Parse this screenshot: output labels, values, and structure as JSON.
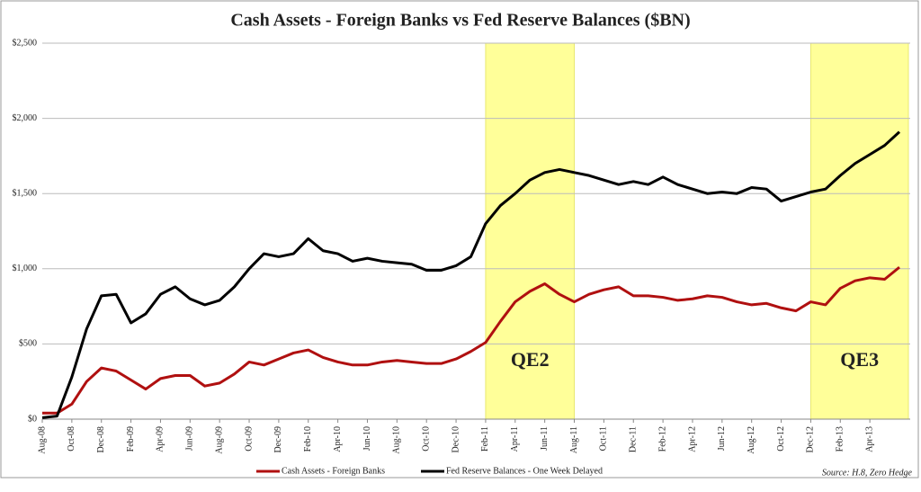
{
  "chart_data": {
    "type": "line",
    "title": "Cash Assets - Foreign Banks vs Fed Reserve Balances ($BN)",
    "source": "Source: H.8, Zero Hedge",
    "categories": [
      "Aug-08",
      null,
      "Oct-08",
      null,
      "Dec-08",
      null,
      "Feb-09",
      null,
      "Apr-09",
      null,
      "Jun-09",
      null,
      "Aug-09",
      null,
      "Oct-09",
      null,
      "Dec-09",
      null,
      "Feb-10",
      null,
      "Apr-10",
      null,
      "Jun-10",
      null,
      "Aug-10",
      null,
      "Oct-10",
      null,
      "Dec-10",
      null,
      "Feb-11",
      null,
      "Apr-11",
      null,
      "Jun-11",
      null,
      "Aug-11",
      null,
      "Oct-11",
      null,
      "Dec-11",
      null,
      "Feb-12",
      null,
      "Apr-12",
      null,
      "Jun-12",
      null,
      "Aug-12",
      null,
      "Oct-12",
      null,
      "Dec-12",
      null,
      "Feb-13",
      null,
      "Apr-13",
      null,
      null
    ],
    "series": [
      {
        "name": "Cash Assets - Foreign Banks",
        "color": "#b01010",
        "values": [
          40,
          40,
          100,
          250,
          340,
          320,
          260,
          200,
          270,
          290,
          290,
          220,
          240,
          300,
          380,
          360,
          400,
          440,
          460,
          410,
          380,
          360,
          360,
          380,
          390,
          380,
          370,
          370,
          400,
          450,
          510,
          650,
          780,
          850,
          900,
          830,
          780,
          830,
          860,
          880,
          820,
          820,
          810,
          790,
          800,
          820,
          810,
          780,
          760,
          770,
          740,
          720,
          780,
          760,
          870,
          920,
          940,
          930,
          1010
        ]
      },
      {
        "name": "Fed Reserve Balances - One Week Delayed",
        "color": "#000000",
        "values": [
          10,
          20,
          280,
          600,
          820,
          830,
          640,
          700,
          830,
          880,
          800,
          760,
          790,
          880,
          1000,
          1100,
          1080,
          1100,
          1200,
          1120,
          1100,
          1050,
          1070,
          1050,
          1040,
          1030,
          990,
          990,
          1020,
          1080,
          1300,
          1420,
          1500,
          1590,
          1640,
          1660,
          1640,
          1620,
          1590,
          1560,
          1580,
          1560,
          1610,
          1560,
          1530,
          1500,
          1510,
          1500,
          1540,
          1530,
          1450,
          1480,
          1510,
          1530,
          1620,
          1700,
          1760,
          1820,
          1910
        ]
      }
    ],
    "ylim": [
      0,
      2500
    ],
    "yticks": [
      {
        "value": 0,
        "label": "$0"
      },
      {
        "value": 500,
        "label": "$500"
      },
      {
        "value": 1000,
        "label": "$1,000"
      },
      {
        "value": 1500,
        "label": "$1,500"
      },
      {
        "value": 2000,
        "label": "$2,000"
      },
      {
        "value": 2500,
        "label": "$2,500"
      }
    ],
    "grid": true,
    "legend": "bottom",
    "shaded_regions": [
      {
        "label": "QE2",
        "start": "Feb-11",
        "end": "Aug-11",
        "color": "#ffff99"
      },
      {
        "label": "QE3",
        "start": "Dec-12",
        "end": null,
        "color": "#ffff99"
      }
    ]
  }
}
